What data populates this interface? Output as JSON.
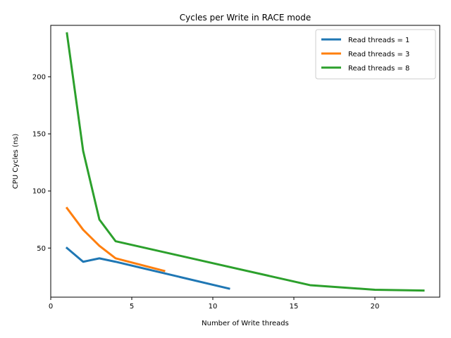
{
  "chart_data": {
    "type": "line",
    "title": "Cycles per Write in RACE mode",
    "xlabel": "Number of Write threads",
    "ylabel": "CPU Cycles (ns)",
    "xlim": [
      0,
      24
    ],
    "ylim": [
      7,
      245
    ],
    "x_ticks": [
      0,
      5,
      10,
      15,
      20
    ],
    "y_ticks": [
      50,
      100,
      150,
      200
    ],
    "grid": false,
    "legend_position": "top-right",
    "series": [
      {
        "name": "Read threads = 1",
        "color": "#1f77b4",
        "x": [
          1,
          2,
          3,
          4,
          11
        ],
        "y": [
          50,
          38,
          41,
          38,
          14.5
        ]
      },
      {
        "name": "Read threads = 3",
        "color": "#ff7f0e",
        "x": [
          1,
          2,
          3,
          4,
          7
        ],
        "y": [
          85,
          66,
          52,
          41,
          30
        ]
      },
      {
        "name": "Read threads = 8",
        "color": "#2ca02c",
        "x": [
          1,
          2,
          3,
          4,
          16,
          20,
          23
        ],
        "y": [
          238,
          135,
          75,
          56,
          17.5,
          13.5,
          12.8
        ]
      }
    ]
  }
}
